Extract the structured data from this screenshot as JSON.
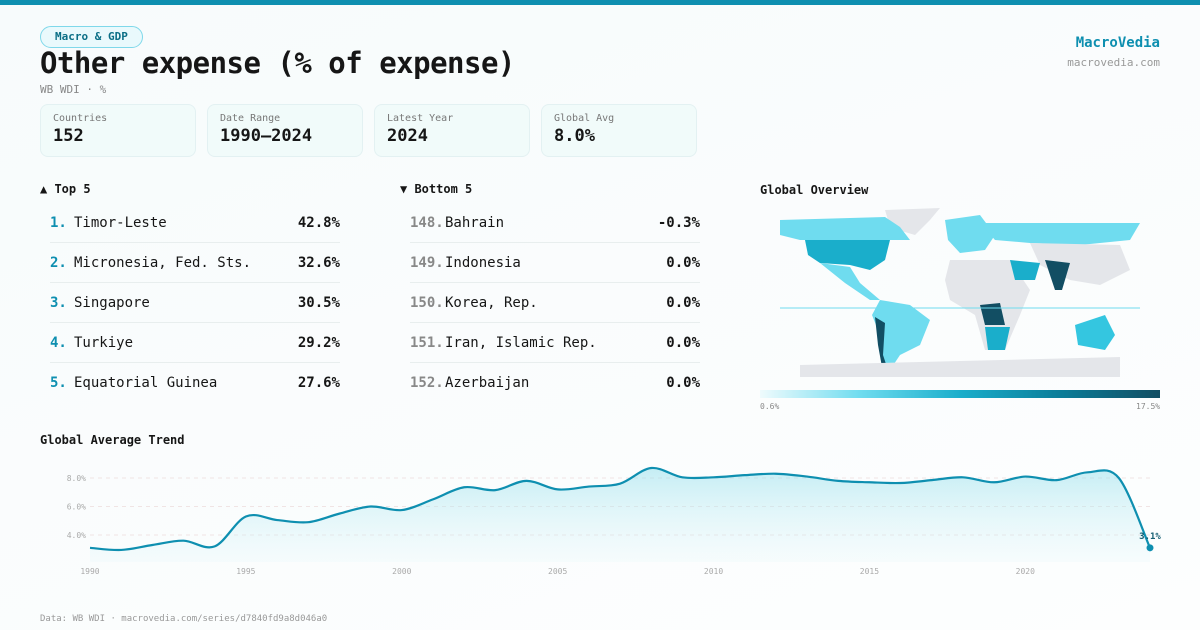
{
  "header": {
    "category": "Macro & GDP",
    "title": "Other expense (% of expense)",
    "subtitle": "WB WDI · %",
    "brand": "MacroVedia",
    "brand_url": "macrovedia.com"
  },
  "stats": [
    {
      "label": "Countries",
      "value": "152"
    },
    {
      "label": "Date Range",
      "value": "1990–2024"
    },
    {
      "label": "Latest Year",
      "value": "2024"
    },
    {
      "label": "Global Avg",
      "value": "8.0%"
    }
  ],
  "top5": {
    "title": "▲ Top 5",
    "items": [
      {
        "rank": "1.",
        "name": "Timor-Leste",
        "value": "42.8%"
      },
      {
        "rank": "2.",
        "name": "Micronesia, Fed. Sts.",
        "value": "32.6%"
      },
      {
        "rank": "3.",
        "name": "Singapore",
        "value": "30.5%"
      },
      {
        "rank": "4.",
        "name": "Turkiye",
        "value": "29.2%"
      },
      {
        "rank": "5.",
        "name": "Equatorial Guinea",
        "value": "27.6%"
      }
    ]
  },
  "bottom5": {
    "title": "▼ Bottom 5",
    "items": [
      {
        "rank": "148.",
        "name": "Bahrain",
        "value": "-0.3%"
      },
      {
        "rank": "149.",
        "name": "Indonesia",
        "value": "0.0%"
      },
      {
        "rank": "150.",
        "name": "Korea, Rep.",
        "value": "0.0%"
      },
      {
        "rank": "151.",
        "name": "Iran, Islamic Rep.",
        "value": "0.0%"
      },
      {
        "rank": "152.",
        "name": "Azerbaijan",
        "value": "0.0%"
      }
    ]
  },
  "map": {
    "title": "Global Overview",
    "legend_min": "0.6%",
    "legend_max": "17.5%",
    "colors": [
      "#effbfd",
      "#6fdcef",
      "#1aaecb",
      "#0b7d99",
      "#124e63"
    ],
    "no_data_color": "#e4e6ea"
  },
  "chart_data": {
    "type": "area",
    "title": "Global Average Trend",
    "x": [
      1990,
      1991,
      1992,
      1993,
      1994,
      1995,
      1996,
      1997,
      1998,
      1999,
      2000,
      2001,
      2002,
      2003,
      2004,
      2005,
      2006,
      2007,
      2008,
      2009,
      2010,
      2011,
      2012,
      2013,
      2014,
      2015,
      2016,
      2017,
      2018,
      2019,
      2020,
      2021,
      2022,
      2023,
      2024
    ],
    "values": [
      3.1,
      2.95,
      3.3,
      3.6,
      3.2,
      5.3,
      5.05,
      4.9,
      5.5,
      6.0,
      5.75,
      6.5,
      7.35,
      7.15,
      7.8,
      7.2,
      7.4,
      7.6,
      8.7,
      8.05,
      8.05,
      8.2,
      8.3,
      8.1,
      7.8,
      7.7,
      7.65,
      7.85,
      8.05,
      7.7,
      8.1,
      7.85,
      8.4,
      8.0,
      3.1
    ],
    "yticks": [
      "4.0%",
      "6.0%",
      "8.0%"
    ],
    "xticks": [
      "1990",
      "1995",
      "2000",
      "2005",
      "2010",
      "2015",
      "2020"
    ],
    "last_label": "3.1%",
    "color": "#0e8fb0",
    "grid": true
  },
  "footer": "Data: WB WDI · macrovedia.com/series/d7840fd9a8d046a0"
}
